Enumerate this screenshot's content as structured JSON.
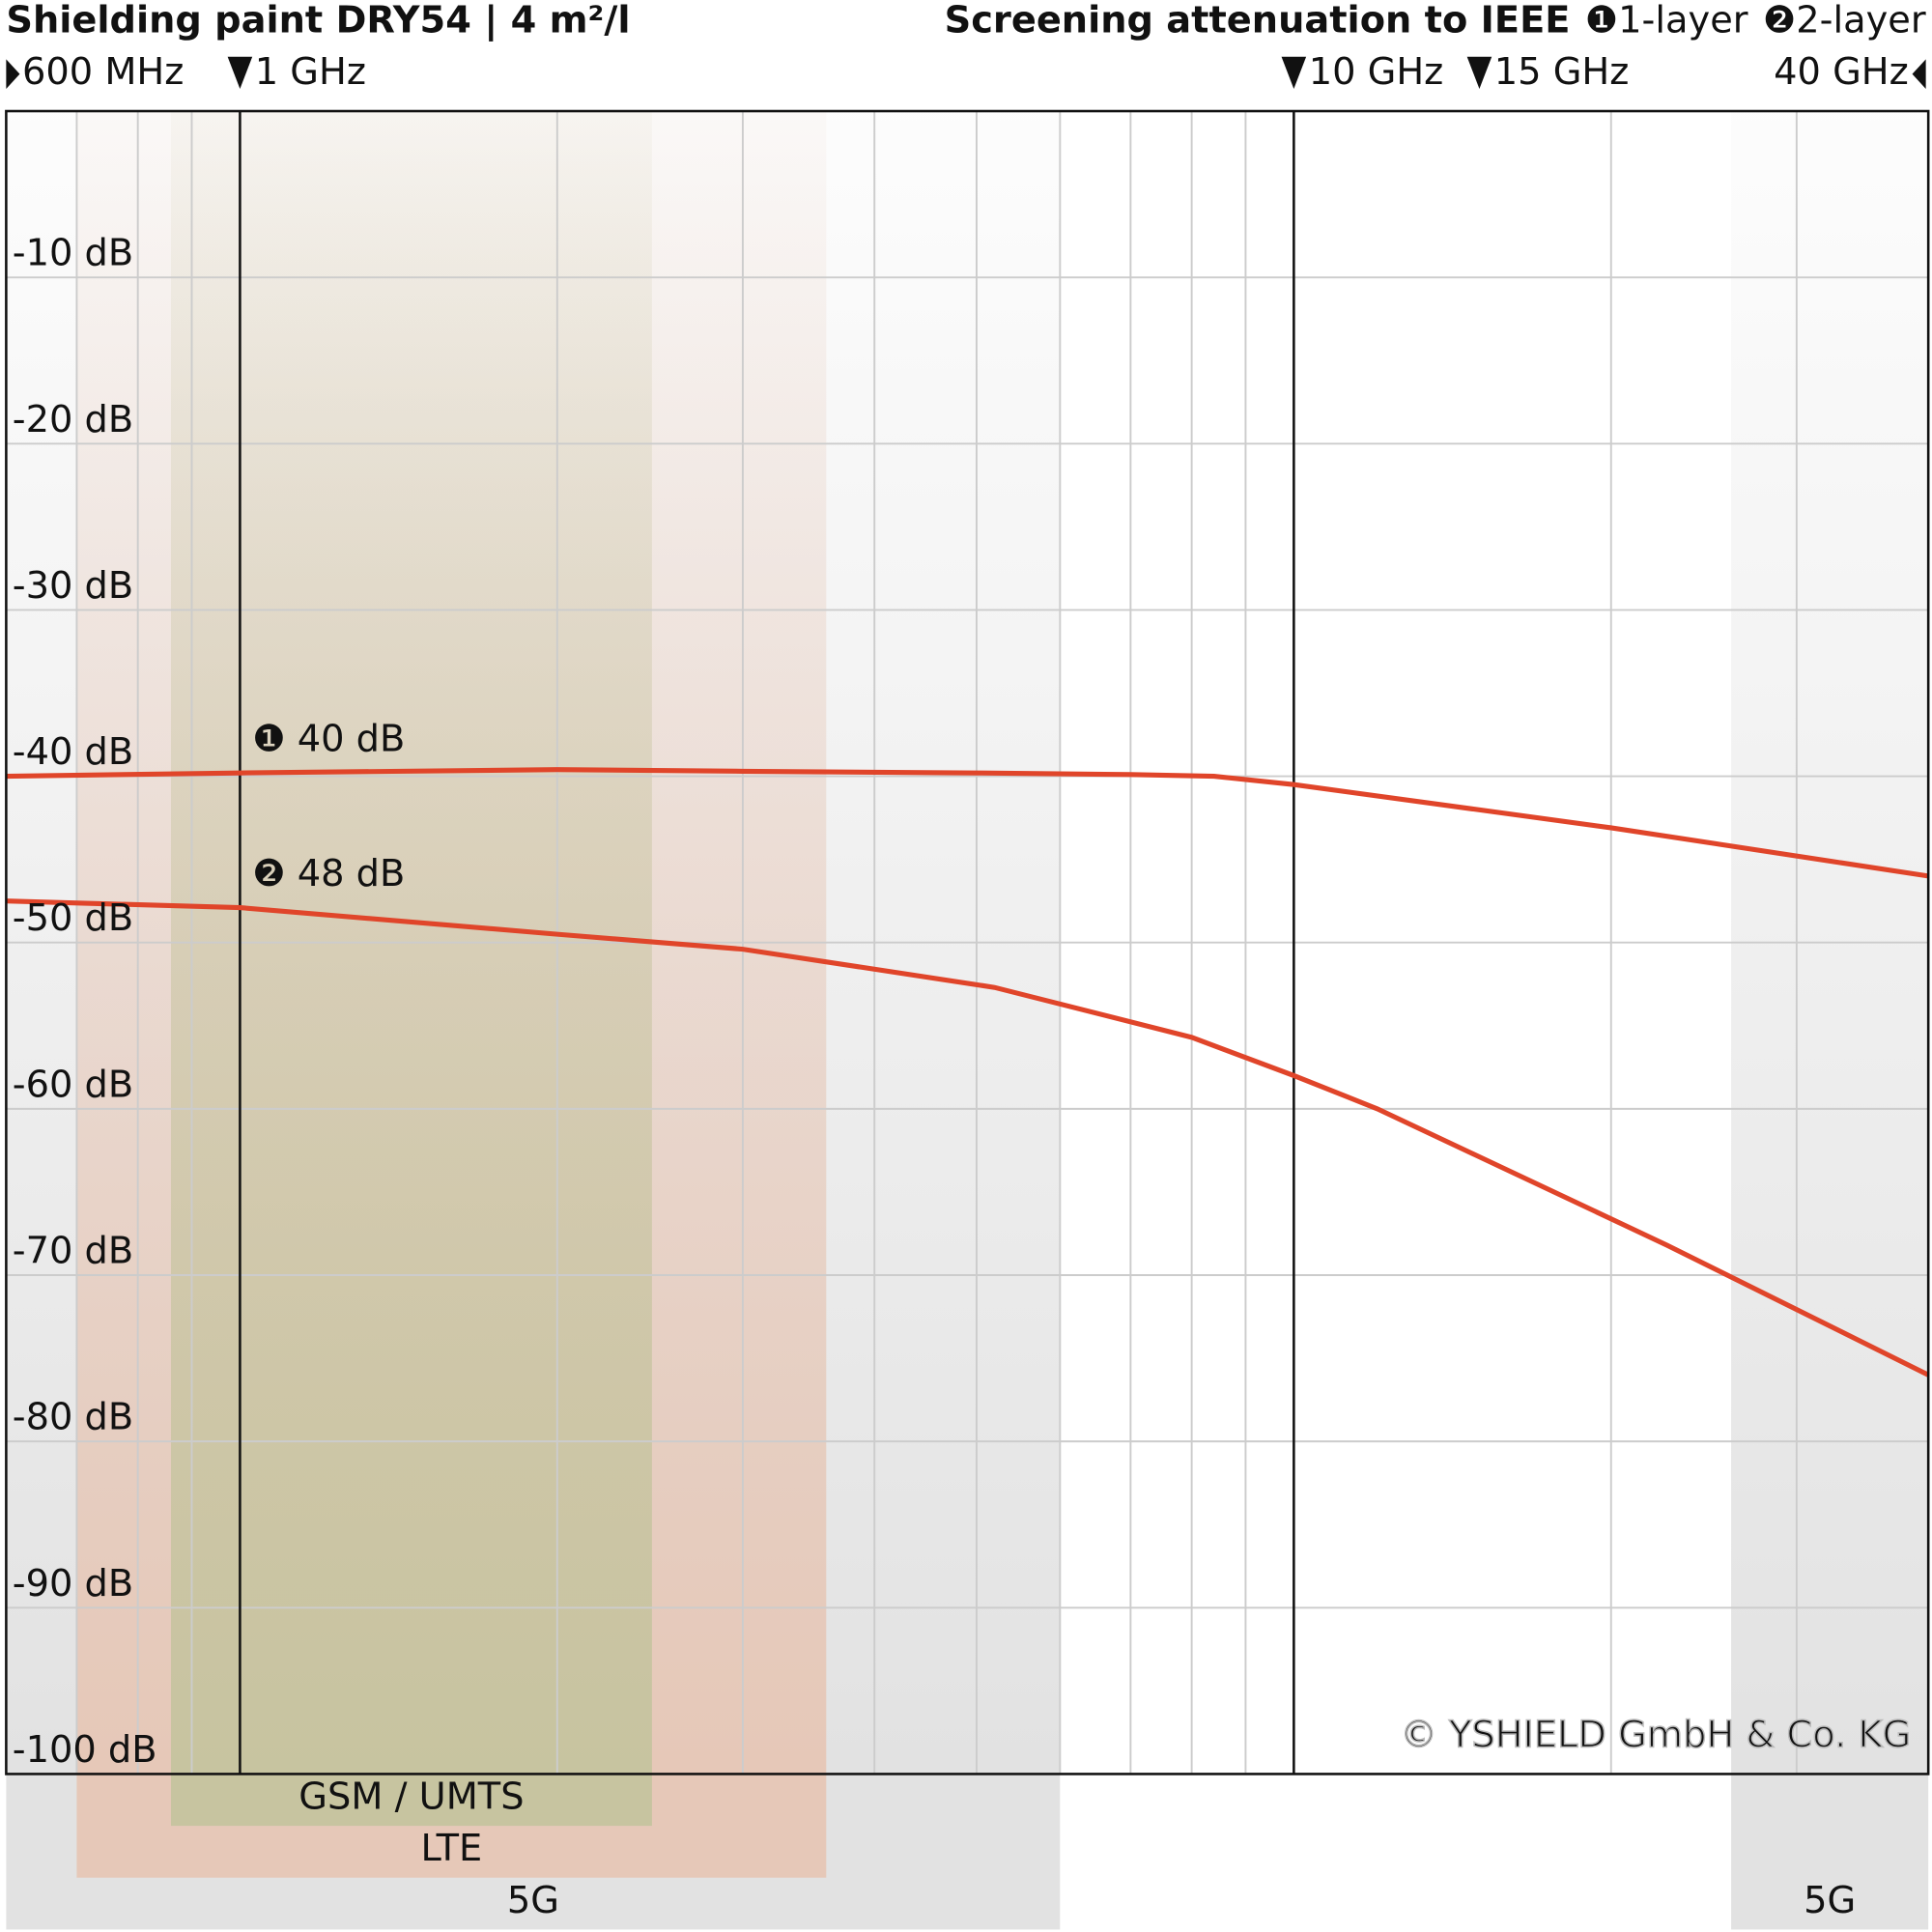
{
  "chart_data": {
    "type": "line",
    "title": "Shielding paint DRY54 | 4 m²/l",
    "subtitle": "Screening attenuation to IEEE",
    "log_x": true,
    "xlim": [
      0.6,
      40
    ],
    "xticks": [
      {
        "value": 0.6,
        "label": "600 MHz"
      },
      {
        "value": 1,
        "label": "1 GHz"
      },
      {
        "value": 10,
        "label": "10 GHz"
      },
      {
        "value": 15,
        "label": "15 GHz"
      },
      {
        "value": 40,
        "label": "40 GHz"
      }
    ],
    "xmajor": [
      1,
      10
    ],
    "xgrid": [
      0.7,
      0.8,
      0.9,
      2,
      3,
      4,
      5,
      6,
      7,
      8,
      9,
      20,
      30
    ],
    "ylim": [
      -100,
      0
    ],
    "yticks": [
      {
        "value": -10,
        "label": "-10 dB"
      },
      {
        "value": -20,
        "label": "-20 dB"
      },
      {
        "value": -30,
        "label": "-30 dB"
      },
      {
        "value": -40,
        "label": "-40 dB"
      },
      {
        "value": -50,
        "label": "-50 dB"
      },
      {
        "value": -60,
        "label": "-60 dB"
      },
      {
        "value": -70,
        "label": "-70 dB"
      },
      {
        "value": -80,
        "label": "-80 dB"
      },
      {
        "value": -90,
        "label": "-90 dB"
      },
      {
        "value": -100,
        "label": "-100 dB"
      }
    ],
    "grid": true,
    "series": [
      {
        "name": "❶1-layer",
        "color": "#e0452a",
        "x": [
          0.6,
          1,
          2,
          3,
          5,
          7,
          8.4,
          10,
          20,
          40
        ],
        "values": [
          -40.0,
          -39.8,
          -39.6,
          -39.7,
          -39.8,
          -39.9,
          -40.0,
          -40.5,
          -43.1,
          -46.0
        ]
      },
      {
        "name": "❷2-layer",
        "color": "#e0452a",
        "x": [
          0.6,
          1,
          2,
          3,
          5.2,
          8,
          10,
          12,
          22.6,
          40
        ],
        "values": [
          -47.5,
          -47.9,
          -49.5,
          -50.4,
          -52.7,
          -55.7,
          -58.0,
          -60.0,
          -68.2,
          -76.0
        ]
      }
    ],
    "annotations": [
      {
        "text": "❶ 40 dB",
        "series": 0
      },
      {
        "text": "❷ 48 dB",
        "series": 1
      }
    ],
    "bands": [
      {
        "label": "5G",
        "from": 0.6,
        "to": 6,
        "color": "#e2e2e2"
      },
      {
        "label": "LTE",
        "from": 0.7,
        "to": 3.6,
        "color": "#e6c8b8"
      },
      {
        "label": "GSM / UMTS",
        "from": 0.86,
        "to": 2.46,
        "color": "#c7c4a0"
      },
      {
        "label": "5G",
        "from": 26,
        "to": 40,
        "color": "#e2e2e2"
      }
    ],
    "copyright": "© YSHIELD GmbH & Co. KG"
  }
}
